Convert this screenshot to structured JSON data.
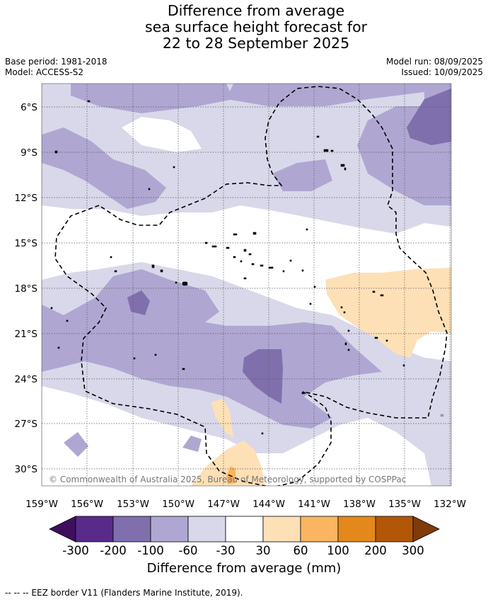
{
  "title": {
    "line1": "Difference from average",
    "line2": "sea surface height forecast for",
    "line3": "22 to 28 September 2025"
  },
  "meta": {
    "base_period": "Base period: 1981-2018",
    "model": "Model: ACCESS-S2",
    "model_run": "Model run: 08/09/2025",
    "issued": "Issued: 10/09/2025"
  },
  "map": {
    "lon_range": [
      -159,
      -132
    ],
    "lat_range": [
      -31.5,
      -3.8
    ],
    "lat_ticks": [
      "6°S",
      "9°S",
      "12°S",
      "15°S",
      "18°S",
      "21°S",
      "24°S",
      "27°S",
      "30°S"
    ],
    "lon_ticks": [
      "159°W",
      "156°W",
      "153°W",
      "150°W",
      "147°W",
      "144°W",
      "141°W",
      "138°W",
      "135°W",
      "132°W"
    ],
    "copyright": "© Commonwealth of Australia 2025, Bureau of Meteorology, supported by COSPPac",
    "gridlines": true
  },
  "colorbar": {
    "ticks": [
      "-300",
      "-200",
      "-100",
      "-60",
      "-30",
      "30",
      "60",
      "100",
      "200",
      "300"
    ],
    "colors": [
      "#3f0f5e",
      "#5a2a8a",
      "#7f70ad",
      "#afa7d2",
      "#d8d8ea",
      "#ffffff",
      "#fde0b6",
      "#fbb560",
      "#e5881b",
      "#b25707",
      "#7f3b08"
    ],
    "label": "Difference from average (mm)"
  },
  "footnote": "--  --  -- EEZ border V11 (Flanders Marine Institute, 2019)."
}
